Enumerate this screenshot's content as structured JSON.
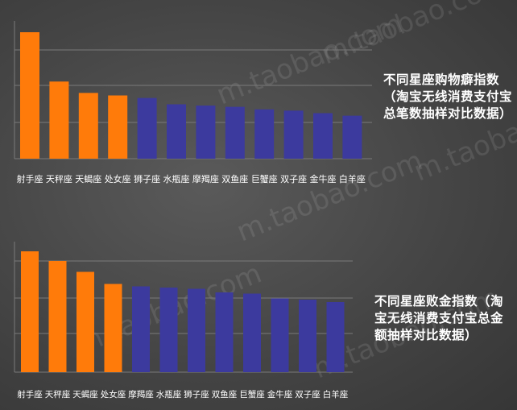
{
  "watermark": "m.taobao.com",
  "captions": [
    "不同星座购物癖指数（淘宝无线消费支付宝总笔数抽样对比数据）",
    "不同星座败金指数（淘宝无线消费支付宝总金额抽样对比数据）"
  ],
  "colors": {
    "highlight": "#ff7b0a",
    "normal": "#3c3a9e"
  },
  "chart_data": [
    {
      "type": "bar",
      "title": "",
      "categories": [
        "射手座",
        "天秤座",
        "天蝎座",
        "处女座",
        "狮子座",
        "水瓶座",
        "摩羯座",
        "双鱼座",
        "巨蟹座",
        "双子座",
        "金牛座",
        "白羊座"
      ],
      "values": [
        100,
        61,
        52,
        50,
        48,
        43,
        42,
        41,
        39,
        38,
        36,
        34
      ],
      "highlight_count": 4,
      "ylim": [
        0,
        110
      ],
      "grid": true,
      "caption": "不同星座购物癖指数（淘宝无线消费支付宝总笔数抽样对比数据）"
    },
    {
      "type": "bar",
      "title": "",
      "categories": [
        "射手座",
        "天秤座",
        "天蝎座",
        "处女座",
        "摩羯座",
        "水瓶座",
        "狮子座",
        "双鱼座",
        "巨蟹座",
        "金牛座",
        "双子座",
        "白羊座"
      ],
      "values": [
        100,
        92,
        83,
        73,
        71,
        70,
        69,
        66,
        65,
        61,
        60,
        58
      ],
      "highlight_count": 4,
      "ylim": [
        0,
        110
      ],
      "grid": true,
      "caption": "不同星座败金指数（淘宝无线消费支付宝总金额抽样对比数据）"
    }
  ]
}
